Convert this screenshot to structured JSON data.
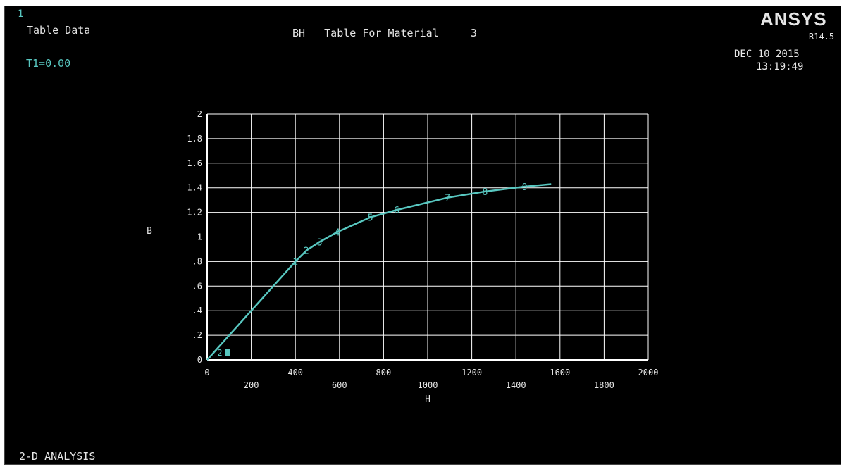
{
  "window_id": "1",
  "title": "Table Data",
  "temperature_label": "T1=0.00",
  "plot_title": "BH   Table For Material     3",
  "brand": "ANSYS",
  "version": "R14.5",
  "date": "DEC 10 2015",
  "time": "13:19:49",
  "footer": "2-D ANALYSIS",
  "colors": {
    "background": "#000000",
    "text": "#e6e6e6",
    "curve": "#58c7c0",
    "grid": "#ffffff"
  },
  "chart_data": {
    "type": "line",
    "xlabel": "H",
    "ylabel": "B",
    "xlim": [
      0,
      2000
    ],
    "ylim": [
      0,
      2
    ],
    "x_ticks": [
      "0",
      "200",
      "400",
      "600",
      "800",
      "1000",
      "1200",
      "1400",
      "1600",
      "1800",
      "2000"
    ],
    "y_ticks": [
      "0",
      ".2",
      ".4",
      ".6",
      ".8",
      "1",
      "1.2",
      "1.4",
      "1.6",
      "1.8",
      "2"
    ],
    "grid": true,
    "series": [
      {
        "x": [
          0,
          400,
          450,
          510,
          590,
          740,
          860,
          1090,
          1260,
          1440,
          1560
        ],
        "y": [
          0,
          0.8,
          0.89,
          0.96,
          1.04,
          1.16,
          1.22,
          1.32,
          1.37,
          1.41,
          1.43
        ]
      }
    ],
    "point_labels": [
      {
        "label": "1",
        "x": 400,
        "y": 0.8
      },
      {
        "label": "2",
        "x": 450,
        "y": 0.89
      },
      {
        "label": "3",
        "x": 510,
        "y": 0.96
      },
      {
        "label": "4",
        "x": 590,
        "y": 1.04
      },
      {
        "label": "5",
        "x": 740,
        "y": 1.16
      },
      {
        "label": "6",
        "x": 860,
        "y": 1.22
      },
      {
        "label": "7",
        "x": 1090,
        "y": 1.32
      },
      {
        "label": "8",
        "x": 1260,
        "y": 1.37
      },
      {
        "label": "9",
        "x": 1440,
        "y": 1.41
      }
    ],
    "legend_marker": "2"
  }
}
